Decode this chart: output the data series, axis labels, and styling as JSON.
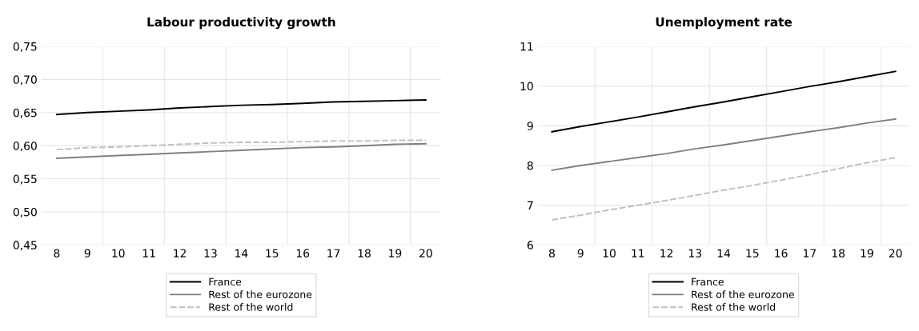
{
  "chart_data": [
    {
      "type": "line",
      "title": "Labour productivity growth",
      "categories": [
        "8",
        "9",
        "10",
        "11",
        "12",
        "13",
        "14",
        "15",
        "16",
        "17",
        "18",
        "19",
        "20"
      ],
      "ylim": [
        0.45,
        0.75
      ],
      "yticks": [
        {
          "value": 0.45,
          "label": "0,45"
        },
        {
          "value": 0.5,
          "label": "0,50"
        },
        {
          "value": 0.55,
          "label": "0,55"
        },
        {
          "value": 0.6,
          "label": "0,60"
        },
        {
          "value": 0.65,
          "label": "0,65"
        },
        {
          "value": 0.7,
          "label": "0,70"
        },
        {
          "value": 0.75,
          "label": "0,75"
        }
      ],
      "grid": true,
      "legend": "bottom",
      "marker": "none",
      "series": [
        {
          "name": "France",
          "color": "#000000",
          "line_style": "solid",
          "values": [
            0.647,
            0.65,
            0.652,
            0.654,
            0.657,
            0.659,
            0.661,
            0.662,
            0.664,
            0.666,
            0.667,
            0.668,
            0.669
          ]
        },
        {
          "name": "Rest of the eurozone",
          "color": "#808080",
          "line_style": "solid",
          "values": [
            0.581,
            0.583,
            0.585,
            0.587,
            0.589,
            0.591,
            0.593,
            0.595,
            0.597,
            0.598,
            0.6,
            0.602,
            0.603
          ]
        },
        {
          "name": "Rest of the world",
          "color": "#c0c0c0",
          "line_style": "dashed",
          "values": [
            0.594,
            0.597,
            0.598,
            0.6,
            0.602,
            0.604,
            0.605,
            0.605,
            0.606,
            0.607,
            0.607,
            0.608,
            0.608
          ]
        }
      ]
    },
    {
      "type": "line",
      "title": "Unemployment rate",
      "categories": [
        "8",
        "9",
        "10",
        "11",
        "12",
        "13",
        "14",
        "15",
        "16",
        "17",
        "18",
        "19",
        "20"
      ],
      "ylim": [
        6,
        11
      ],
      "yticks": [
        6,
        7,
        8,
        9,
        10,
        11
      ],
      "grid": true,
      "legend": "bottom",
      "marker": "none",
      "series": [
        {
          "name": "France",
          "color": "#000000",
          "line_style": "solid",
          "values": [
            8.85,
            8.98,
            9.1,
            9.22,
            9.35,
            9.48,
            9.6,
            9.73,
            9.86,
            9.99,
            10.11,
            10.24,
            10.37
          ]
        },
        {
          "name": "Rest of the eurozone",
          "color": "#808080",
          "line_style": "solid",
          "values": [
            7.88,
            8.0,
            8.1,
            8.2,
            8.3,
            8.42,
            8.52,
            8.63,
            8.74,
            8.85,
            8.95,
            9.07,
            9.17
          ]
        },
        {
          "name": "Rest of the world",
          "color": "#c0c0c0",
          "line_style": "dashed",
          "values": [
            6.63,
            6.75,
            6.88,
            7.0,
            7.12,
            7.25,
            7.38,
            7.5,
            7.63,
            7.77,
            7.92,
            8.07,
            8.2
          ]
        }
      ]
    }
  ]
}
